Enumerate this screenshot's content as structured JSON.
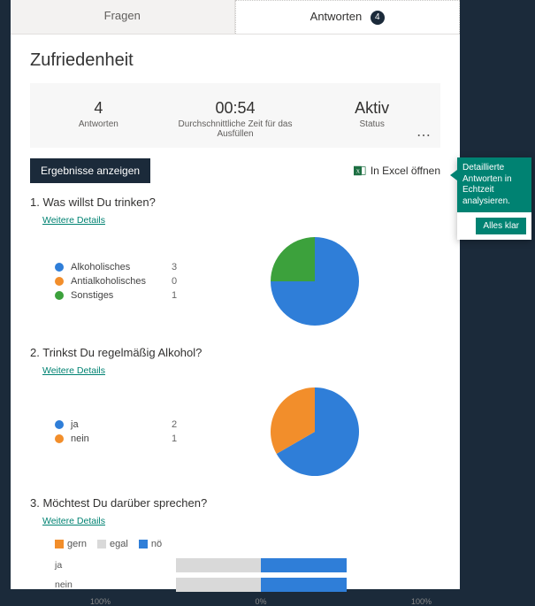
{
  "colors": {
    "blue": "#2f7ed8",
    "orange": "#f28e2b",
    "green": "#3ca13c",
    "grey": "#d9d9d9",
    "teal": "#008272",
    "dark": "#1b2a3a"
  },
  "tabs": {
    "questions": "Fragen",
    "responses": "Antworten",
    "responses_count": "4"
  },
  "title": "Zufriedenheit",
  "stats": {
    "responses": {
      "value": "4",
      "label": "Antworten"
    },
    "avg_time": {
      "value": "00:54",
      "label": "Durchschnittliche Zeit für das Ausfüllen"
    },
    "status": {
      "value": "Aktiv",
      "label": "Status"
    }
  },
  "actions": {
    "view_results": "Ergebnisse anzeigen",
    "open_excel": "In Excel öffnen"
  },
  "callout": {
    "text": "Detaillierte Antworten in Echtzeit analysieren.",
    "button": "Alles klar"
  },
  "q1": {
    "number": "1.",
    "title": "Was willst Du trinken?",
    "details": "Weitere Details",
    "type": "pie",
    "options": [
      {
        "label": "Alkoholisches",
        "count": "3",
        "color": "#2f7ed8"
      },
      {
        "label": "Antialkoholisches",
        "count": "0",
        "color": "#f28e2b"
      },
      {
        "label": "Sonstiges",
        "count": "1",
        "color": "#3ca13c"
      }
    ]
  },
  "q2": {
    "number": "2.",
    "title": "Trinkst Du regelmäßig Alkohol?",
    "details": "Weitere Details",
    "type": "pie",
    "options": [
      {
        "label": "ja",
        "count": "2",
        "color": "#2f7ed8"
      },
      {
        "label": "nein",
        "count": "1",
        "color": "#f28e2b"
      }
    ]
  },
  "q3": {
    "number": "3.",
    "title": "Möchtest Du darüber sprechen?",
    "details": "Weitere Details",
    "type": "stacked-bar-diverging",
    "series": [
      {
        "label": "gern",
        "color": "#f28e2b"
      },
      {
        "label": "egal",
        "color": "#d9d9d9"
      },
      {
        "label": "nö",
        "color": "#2f7ed8"
      }
    ],
    "rows": [
      {
        "label": "ja",
        "gern_pct": 0,
        "egal_pct": 50,
        "noe_pct": 50
      },
      {
        "label": "nein",
        "gern_pct": 0,
        "egal_pct": 50,
        "noe_pct": 50
      }
    ],
    "axis": {
      "left": "100%",
      "mid": "0%",
      "right": "100%"
    }
  }
}
